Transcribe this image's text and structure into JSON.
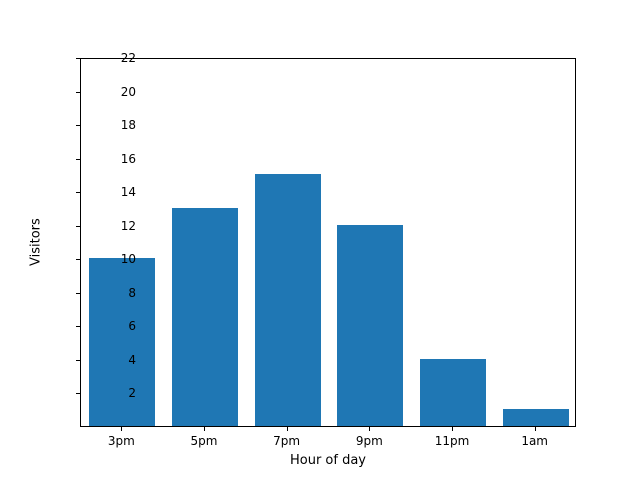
{
  "chart_data": {
    "type": "bar",
    "categories": [
      "3pm",
      "5pm",
      "7pm",
      "9pm",
      "11pm",
      "1am"
    ],
    "values": [
      10,
      13,
      15,
      12,
      4,
      1
    ],
    "title": "",
    "xlabel": "Hour of day",
    "ylabel": "Visitors",
    "ylim": [
      0,
      22
    ],
    "yticks": [
      2,
      4,
      6,
      8,
      10,
      12,
      14,
      16,
      18,
      20,
      22
    ],
    "bar_color": "#1f77b4",
    "bar_width_fraction": 0.8,
    "grid": false,
    "legend_position": "none"
  }
}
